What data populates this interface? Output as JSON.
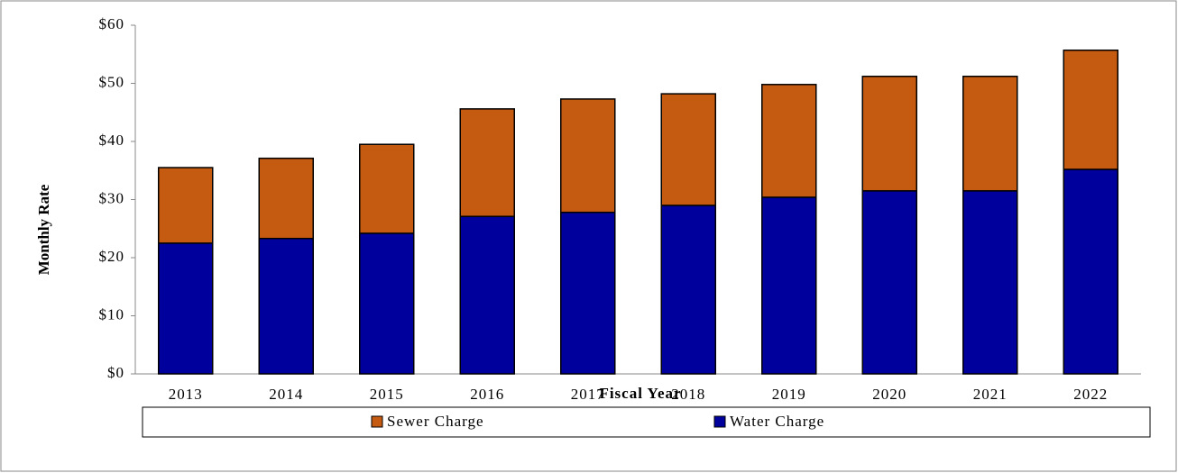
{
  "chart_data": {
    "type": "stacked_bar",
    "x_label": "Fiscal Year",
    "y_label": "Monthly Rate",
    "categories": [
      "2013",
      "2014",
      "2015",
      "2016",
      "2017",
      "2018",
      "2019",
      "2020",
      "2021",
      "2022"
    ],
    "series": [
      {
        "name": "Water Charge",
        "color": "#00009c",
        "values": [
          22.5,
          23.3,
          24.2,
          27.1,
          27.8,
          29.0,
          30.4,
          31.5,
          31.5,
          35.2
        ]
      },
      {
        "name": "Sewer Charge",
        "color": "#c55a11",
        "values": [
          13.0,
          13.8,
          15.3,
          18.5,
          19.5,
          19.2,
          19.4,
          19.7,
          19.7,
          20.5
        ]
      }
    ],
    "ylim": [
      0,
      60
    ],
    "yticks": [
      {
        "value": 0,
        "label": "$0"
      },
      {
        "value": 10,
        "label": "$10"
      },
      {
        "value": 20,
        "label": "$20"
      },
      {
        "value": 30,
        "label": "$30"
      },
      {
        "value": 40,
        "label": "$40"
      },
      {
        "value": 50,
        "label": "$50"
      },
      {
        "value": 60,
        "label": "$60"
      }
    ],
    "legend": "bottom"
  }
}
